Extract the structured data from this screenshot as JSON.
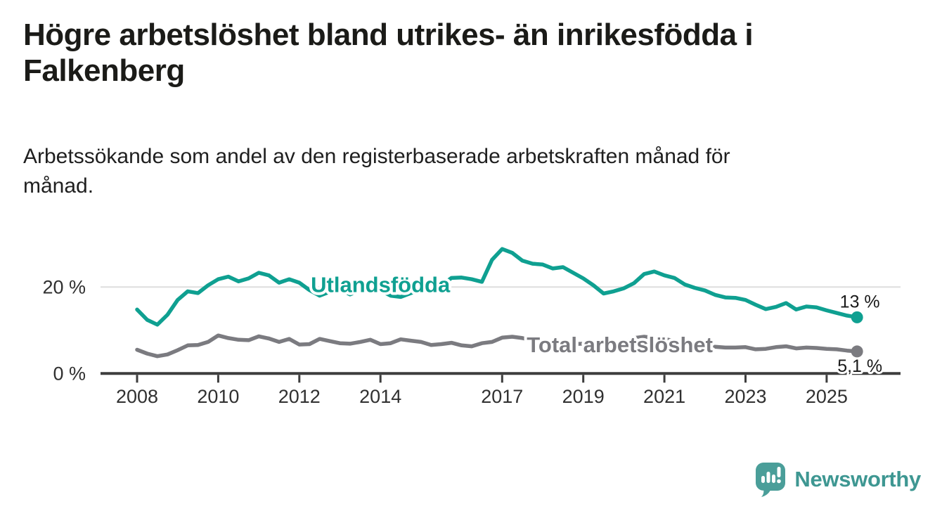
{
  "header": {
    "title": "Högre arbetslöshet bland utrikes- än inrikesfödda i Falkenberg",
    "title_lines": [
      "Högre arbetslöshet bland utrikes- än inrikesfödda i",
      "Falkenberg"
    ],
    "subtitle_lines": [
      "Arbetssökande som andel av den registerbaserade arbetskraften månad för",
      "månad."
    ]
  },
  "footer": {
    "brand": "Newsworthy",
    "logo_icon": "speech-bubble-bar-chart-icon",
    "brand_color": "#3E9792"
  },
  "colors": {
    "accent_teal": "#0FA091",
    "series_gray": "#7B7B80",
    "axis": "#3D3D3D",
    "tick_text": "#303030",
    "gridline": "#DEDEDE",
    "value_text": "#1A1A1A",
    "logo_teal": "#4A9E99"
  },
  "chart_data": {
    "type": "line",
    "title": "Högre arbetslöshet bland utrikes- än inrikesfödda i Falkenberg",
    "subtitle": "Arbetssökande som andel av den registerbaserade arbetskraften månad för månad.",
    "unit": "%",
    "x_unit": "year (monthly series shown; values sampled quarterly, estimated from plot)",
    "xlim": [
      2007.1,
      2026.8
    ],
    "ylim": [
      0,
      32.7
    ],
    "grid": "single horizontal gridline at 20 %, x-axis baseline at 0 %",
    "legend_position": "inline labels on lines",
    "xticks": [
      2008,
      2010,
      2012,
      2014,
      2017,
      2019,
      2021,
      2023,
      2025
    ],
    "yticks": [
      {
        "value": 0,
        "label": "0 %"
      },
      {
        "value": 20,
        "label": "20 %"
      }
    ],
    "x": [
      2008.0,
      2008.25,
      2008.5,
      2008.75,
      2009.0,
      2009.25,
      2009.5,
      2009.75,
      2010.0,
      2010.25,
      2010.5,
      2010.75,
      2011.0,
      2011.25,
      2011.5,
      2011.75,
      2012.0,
      2012.25,
      2012.5,
      2012.75,
      2013.0,
      2013.25,
      2013.5,
      2013.75,
      2014.0,
      2014.25,
      2014.5,
      2014.75,
      2015.0,
      2015.25,
      2015.5,
      2015.75,
      2016.0,
      2016.25,
      2016.5,
      2016.75,
      2017.0,
      2017.25,
      2017.5,
      2017.75,
      2018.0,
      2018.25,
      2018.5,
      2018.75,
      2019.0,
      2019.25,
      2019.5,
      2019.75,
      2020.0,
      2020.25,
      2020.5,
      2020.75,
      2021.0,
      2021.25,
      2021.5,
      2021.75,
      2022.0,
      2022.25,
      2022.5,
      2022.75,
      2023.0,
      2023.25,
      2023.5,
      2023.75,
      2024.0,
      2024.25,
      2024.5,
      2024.75,
      2025.0,
      2025.25,
      2025.5,
      2025.75
    ],
    "series": [
      {
        "name": "Utlandsfödda",
        "color": "#0FA091",
        "end_label": "13 %",
        "end_label_side": "above",
        "end_value": 13.0,
        "values": [
          14.8,
          12.4,
          11.3,
          13.6,
          17.0,
          19.0,
          18.6,
          20.4,
          21.8,
          22.4,
          21.3,
          22.0,
          23.3,
          22.7,
          21.0,
          21.8,
          21.0,
          19.3,
          18.0,
          18.9,
          19.6,
          18.3,
          19.3,
          19.9,
          19.2,
          18.0,
          17.7,
          18.6,
          19.5,
          19.0,
          20.4,
          22.1,
          22.2,
          21.8,
          21.2,
          26.3,
          28.8,
          27.9,
          26.1,
          25.4,
          25.2,
          24.3,
          24.6,
          23.3,
          22.0,
          20.4,
          18.5,
          19.0,
          19.7,
          20.9,
          23.0,
          23.6,
          22.7,
          22.1,
          20.6,
          19.8,
          19.2,
          18.2,
          17.6,
          17.5,
          17.0,
          15.9,
          14.9,
          15.4,
          16.3,
          14.8,
          15.5,
          15.3,
          14.6,
          14.0,
          13.4,
          13.0
        ]
      },
      {
        "name": "Total arbetslöshet",
        "color": "#7B7B80",
        "end_label": "5,1 %",
        "end_label_side": "below",
        "end_value": 5.1,
        "values": [
          5.5,
          4.6,
          4.0,
          4.4,
          5.4,
          6.5,
          6.6,
          7.3,
          8.8,
          8.2,
          7.8,
          7.7,
          8.6,
          8.1,
          7.3,
          8.0,
          6.7,
          6.8,
          8.0,
          7.5,
          7.0,
          6.9,
          7.3,
          7.8,
          6.8,
          7.0,
          7.9,
          7.6,
          7.3,
          6.6,
          6.8,
          7.1,
          6.5,
          6.3,
          7.0,
          7.3,
          8.3,
          8.5,
          8.2,
          7.7,
          7.4,
          7.1,
          7.0,
          6.8,
          6.9,
          6.6,
          6.8,
          6.7,
          7.0,
          8.2,
          8.5,
          8.2,
          8.0,
          7.5,
          7.1,
          6.8,
          6.5,
          6.2,
          6.0,
          6.0,
          6.1,
          5.6,
          5.7,
          6.1,
          6.3,
          5.8,
          6.0,
          5.9,
          5.7,
          5.6,
          5.3,
          5.1
        ]
      }
    ],
    "annotations": [
      {
        "text": "Utlandsfödda",
        "x": 2014.0,
        "y": 20.6,
        "color": "#0FA091"
      },
      {
        "text": "Total arbetslöshet",
        "x": 2019.9,
        "y": 6.7,
        "color": "#7B7B80"
      }
    ]
  }
}
